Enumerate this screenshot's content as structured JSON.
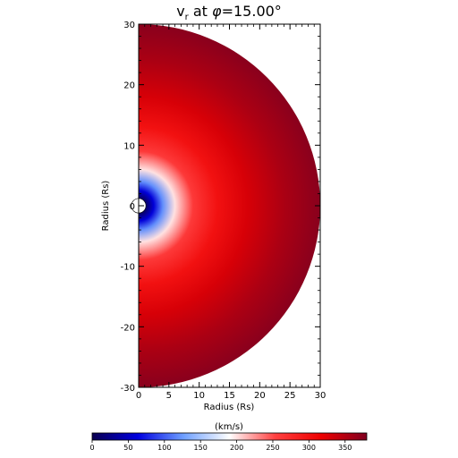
{
  "chart_data": {
    "type": "heatmap",
    "title_var": "v",
    "title_sub": "r",
    "title_mid": " at ",
    "title_sym": "φ",
    "title_val": "=15.00°",
    "xlabel": "Radius (Rs)",
    "ylabel": "Radius (Rs)",
    "xlim": [
      0,
      30
    ],
    "ylim": [
      -30,
      30
    ],
    "xticks": [
      "0",
      "5",
      "10",
      "15",
      "20",
      "25",
      "30"
    ],
    "yticks": [
      "-30",
      "-20",
      "-10",
      "0",
      "10",
      "20",
      "30"
    ],
    "domain_shape": "half-disk",
    "outer_radius": 30,
    "inner_radius": 1,
    "field": "radial velocity vs. radius",
    "profile": [
      {
        "r": 1,
        "v": 0
      },
      {
        "r": 2.5,
        "v": 60
      },
      {
        "r": 4,
        "v": 120
      },
      {
        "r": 6,
        "v": 200
      },
      {
        "r": 9,
        "v": 260
      },
      {
        "r": 13,
        "v": 300
      },
      {
        "r": 18,
        "v": 330
      },
      {
        "r": 24,
        "v": 355
      },
      {
        "r": 30,
        "v": 375
      }
    ],
    "colorbar": {
      "label": "(km/s)",
      "min": 0,
      "max": 380,
      "ticks": [
        "0",
        "50",
        "100",
        "150",
        "200",
        "250",
        "300",
        "350"
      ],
      "tick_values": [
        0,
        50,
        100,
        150,
        200,
        250,
        300,
        350
      ],
      "colors": [
        "#0a0050",
        "#0000e0",
        "#6fa0ff",
        "#ffffff",
        "#ff4040",
        "#ee0000",
        "#800020"
      ]
    }
  }
}
